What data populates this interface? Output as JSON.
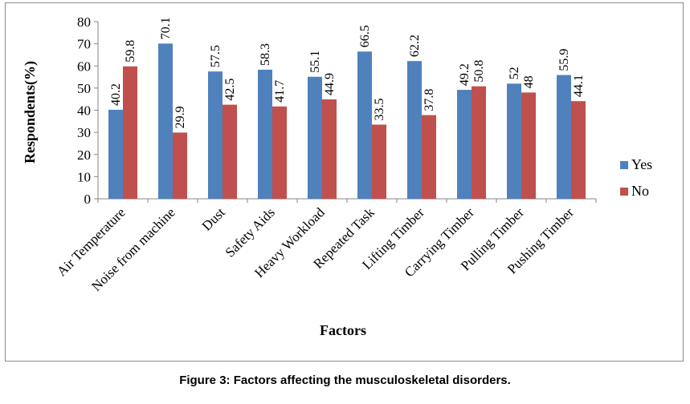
{
  "caption": "Figure 3: Factors affecting the musculoskeletal disorders.",
  "chart_data": {
    "type": "bar",
    "categories": [
      "Air Temperature",
      "Noise from machine",
      "Dust",
      "Safety Aids",
      "Heavy Workload",
      "Repeated Task",
      "Lifting Timber",
      "Carrying Timber",
      "Pulling Timber",
      "Pushing Timber"
    ],
    "series": [
      {
        "name": "Yes",
        "color": "#4f81bd",
        "values": [
          40.2,
          70.1,
          57.5,
          58.3,
          55.1,
          66.5,
          62.2,
          49.2,
          52,
          55.9
        ],
        "labels": [
          "40.2",
          "70.1",
          "57.5",
          "58.3",
          "55.1",
          "66.5",
          "62.2",
          "49.2",
          "52",
          "55.9"
        ]
      },
      {
        "name": "No",
        "color": "#c0504d",
        "values": [
          59.8,
          29.9,
          42.5,
          41.7,
          44.9,
          33.5,
          37.8,
          50.8,
          48,
          44.1
        ],
        "labels": [
          "59.8",
          "29.9",
          "42.5",
          "41.7",
          "44.9",
          "33.5",
          "37.8",
          "50.8",
          "48",
          "44.1"
        ]
      }
    ],
    "xlabel": "Factors",
    "ylabel": "Respondents(%)",
    "ylim": [
      0,
      80
    ],
    "yticks": [
      0,
      10,
      20,
      30,
      40,
      50,
      60,
      70,
      80
    ],
    "ytick_labels": [
      "0",
      "10",
      "20",
      "30",
      "40",
      "50",
      "60",
      "70",
      "80"
    ],
    "grid": false,
    "legend_position": "right"
  }
}
